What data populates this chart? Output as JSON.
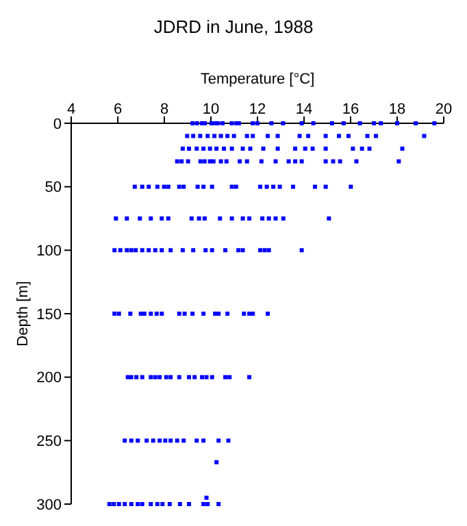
{
  "chart_data": {
    "type": "scatter",
    "title": "JDRD in June, 1988",
    "xlabel": "Temperature [°C]",
    "ylabel": "Depth [m]",
    "xlim": [
      4,
      20
    ],
    "xticks": [
      4,
      6,
      8,
      10,
      12,
      14,
      16,
      18,
      20
    ],
    "ylim": [
      300,
      0
    ],
    "yticks": [
      0,
      50,
      100,
      150,
      200,
      250,
      300
    ],
    "marker": "square",
    "grid": false,
    "legend": false,
    "series": [
      {
        "color": "#0000ff",
        "x": [
          9.21,
          9.4,
          9.62,
          9.74,
          10.02,
          10.15,
          10.3,
          10.5,
          10.9,
          11.1,
          11.2,
          11.8,
          12.0,
          12.6,
          13.1,
          13.9,
          14.4,
          15.2,
          15.7,
          16.4,
          17.0,
          17.3,
          18.0,
          18.8,
          19.6
        ],
        "values": [
          0,
          0,
          0,
          0,
          0,
          0,
          0,
          0,
          0,
          0,
          0,
          0,
          0,
          0,
          0,
          0,
          0,
          0,
          0,
          0,
          0,
          0,
          0,
          0,
          0
        ]
      },
      {
        "color": "#0000ff",
        "x": [
          8.98,
          9.24,
          9.54,
          9.86,
          10.15,
          10.43,
          10.71,
          10.99,
          11.55,
          11.8,
          12.44,
          12.87,
          13.81,
          14.18,
          14.93,
          15.5,
          15.91,
          16.72,
          17.09,
          19.16
        ],
        "values": [
          10,
          10,
          10,
          10,
          10,
          10,
          10,
          10,
          10,
          10,
          10,
          10,
          10,
          10,
          10,
          10,
          10,
          10,
          10,
          10
        ]
      },
      {
        "color": "#0000ff",
        "x": [
          8.79,
          9.06,
          9.39,
          9.68,
          9.96,
          10.24,
          10.56,
          10.9,
          11.37,
          11.69,
          12.25,
          12.87,
          13.62,
          14.05,
          14.37,
          14.93,
          16.1,
          16.49,
          16.81,
          18.22
        ],
        "values": [
          20,
          20,
          20,
          20,
          20,
          20,
          20,
          20,
          20,
          20,
          20,
          20,
          20,
          20,
          20,
          20,
          20,
          20,
          20,
          20
        ]
      },
      {
        "color": "#0000ff",
        "x": [
          8.55,
          8.74,
          9.02,
          9.55,
          9.73,
          9.96,
          10.11,
          10.43,
          10.67,
          11.24,
          11.55,
          12.17,
          12.78,
          13.34,
          13.62,
          13.9,
          14.93,
          15.25,
          15.55,
          16.25,
          18.07
        ],
        "values": [
          30,
          30,
          30,
          30,
          30,
          30,
          30,
          30,
          30,
          30,
          30,
          30,
          30,
          30,
          30,
          30,
          30,
          30,
          30,
          30,
          30
        ]
      },
      {
        "color": "#0000ff",
        "x": [
          6.73,
          7.05,
          7.33,
          7.7,
          7.99,
          8.17,
          8.64,
          8.83,
          9.43,
          9.68,
          10.05,
          10.9,
          11.08,
          12.12,
          12.4,
          12.68,
          12.96,
          13.53,
          14.47,
          14.93,
          16.01
        ],
        "values": [
          50,
          50,
          50,
          50,
          50,
          50,
          50,
          50,
          50,
          50,
          50,
          50,
          50,
          50,
          50,
          50,
          50,
          50,
          50,
          50,
          50
        ]
      },
      {
        "color": "#0000ff",
        "x": [
          5.92,
          6.39,
          6.95,
          7.42,
          7.89,
          8.17,
          9.17,
          9.49,
          9.73,
          10.39,
          10.9,
          11.37,
          11.65,
          12.21,
          12.49,
          12.78,
          13.11,
          15.07
        ],
        "values": [
          75,
          75,
          75,
          75,
          75,
          75,
          75,
          75,
          75,
          75,
          75,
          75,
          75,
          75,
          75,
          75,
          75,
          75
        ]
      },
      {
        "color": "#0000ff",
        "x": [
          5.86,
          6.11,
          6.39,
          6.58,
          6.77,
          7.05,
          7.33,
          7.61,
          7.89,
          8.27,
          8.79,
          9.24,
          9.77,
          10.05,
          10.62,
          11.18,
          11.37,
          12.12,
          12.31,
          12.49,
          13.9
        ],
        "values": [
          100,
          100,
          100,
          100,
          100,
          100,
          100,
          100,
          100,
          100,
          100,
          100,
          100,
          100,
          100,
          100,
          100,
          100,
          100,
          100,
          100
        ]
      },
      {
        "color": "#0000ff",
        "x": [
          5.86,
          6.05,
          6.54,
          6.99,
          7.14,
          7.42,
          7.67,
          7.89,
          8.64,
          8.87,
          9.21,
          9.68,
          10.18,
          10.33,
          10.71,
          11.42,
          11.65,
          11.8,
          12.44
        ],
        "values": [
          150,
          150,
          150,
          150,
          150,
          150,
          150,
          150,
          150,
          150,
          150,
          150,
          150,
          150,
          150,
          150,
          150,
          150,
          150
        ]
      },
      {
        "color": "#0000ff",
        "x": [
          6.43,
          6.58,
          6.8,
          7.05,
          7.42,
          7.61,
          7.8,
          8.08,
          8.27,
          8.64,
          9.06,
          9.3,
          9.62,
          9.81,
          10.05,
          10.62,
          10.8,
          11.65
        ],
        "values": [
          200,
          200,
          200,
          200,
          200,
          200,
          200,
          200,
          200,
          200,
          200,
          200,
          200,
          200,
          200,
          200,
          200,
          200
        ]
      },
      {
        "color": "#0000ff",
        "x": [
          6.3,
          6.58,
          6.86,
          7.24,
          7.52,
          7.8,
          8.04,
          8.27,
          8.55,
          8.83,
          9.39,
          9.68,
          10.33,
          10.75,
          10.24
        ],
        "values": [
          250,
          250,
          250,
          250,
          250,
          250,
          250,
          250,
          250,
          250,
          250,
          250,
          250,
          250,
          267
        ]
      },
      {
        "color": "#0000ff",
        "x": [
          5.64,
          5.83,
          6.05,
          6.3,
          6.58,
          6.86,
          7.05,
          7.42,
          7.7,
          7.92,
          8.23,
          8.67,
          9.06,
          9.68,
          9.86,
          10.33,
          9.81
        ],
        "values": [
          300,
          300,
          300,
          300,
          300,
          300,
          300,
          300,
          300,
          300,
          300,
          300,
          300,
          300,
          300,
          300,
          295
        ]
      }
    ]
  }
}
